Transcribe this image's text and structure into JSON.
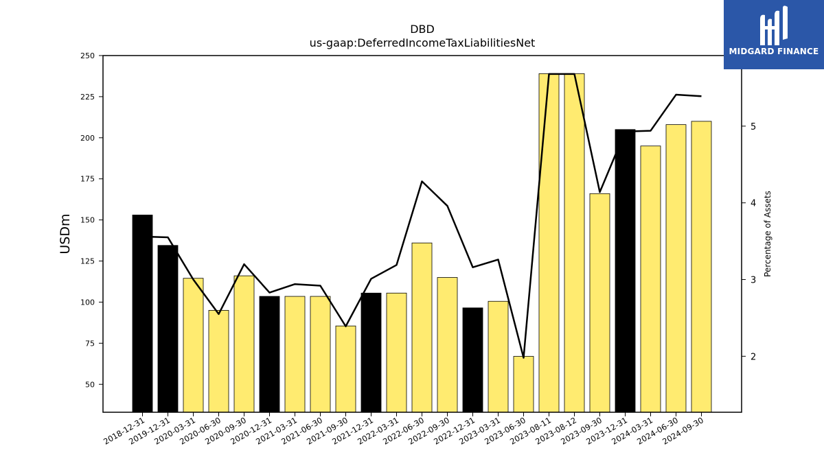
{
  "chart_data": {
    "type": "bar",
    "title": "DBD",
    "subtitle": "us-gaap:DeferredIncomeTaxLiabilitiesNet",
    "ylabel": "USDm",
    "y2label": "Percentage of Assets",
    "ylim": [
      33,
      250
    ],
    "y2lim": [
      1.27,
      5.92
    ],
    "yticks": [
      50,
      75,
      100,
      125,
      150,
      175,
      200,
      225,
      250
    ],
    "y2ticks": [
      2,
      3,
      4,
      5
    ],
    "categories": [
      "2018-12-31",
      "2019-12-31",
      "2020-03-31",
      "2020-06-30",
      "2020-09-30",
      "2020-12-31",
      "2021-03-31",
      "2021-06-30",
      "2021-09-30",
      "2021-12-31",
      "2022-03-31",
      "2022-06-30",
      "2022-09-30",
      "2022-12-31",
      "2023-03-31",
      "2023-06-30",
      "2023-08-11",
      "2023-08-12",
      "2023-09-30",
      "2023-12-31",
      "2024-03-31",
      "2024-06-30",
      "2024-09-30"
    ],
    "series": [
      {
        "values": [
          153,
          134.5,
          114.5,
          95,
          116,
          103.5,
          103.5,
          103.5,
          85.5,
          105.5,
          105.5,
          136,
          115,
          96.5,
          100.5,
          67,
          239,
          239,
          166,
          205,
          195,
          208,
          210
        ],
        "bar_colors": [
          "#000000",
          "#000000",
          "#ffeb70",
          "#ffeb70",
          "#ffeb70",
          "#000000",
          "#ffeb70",
          "#ffeb70",
          "#ffeb70",
          "#000000",
          "#ffeb70",
          "#ffeb70",
          "#ffeb70",
          "#000000",
          "#ffeb70",
          "#ffeb70",
          "#ffeb70",
          "#ffeb70",
          "#ffeb70",
          "#000000",
          "#ffeb70",
          "#ffeb70",
          "#ffeb70"
        ]
      },
      {
        "axis": "right",
        "values": [
          3.56,
          3.55,
          3.0,
          2.55,
          3.2,
          2.83,
          2.94,
          2.92,
          2.39,
          3.01,
          3.19,
          4.28,
          3.96,
          3.16,
          3.26,
          1.98,
          5.68,
          5.68,
          4.14,
          4.93,
          4.94,
          5.41,
          5.39
        ],
        "color": "#000000"
      }
    ],
    "grid": false
  },
  "logo": {
    "text": "MIDGARD FINANCE"
  },
  "colors": {
    "annual_bar": "#000000",
    "quarter_bar": "#ffeb70",
    "logo_bg": "#2b57a8"
  }
}
